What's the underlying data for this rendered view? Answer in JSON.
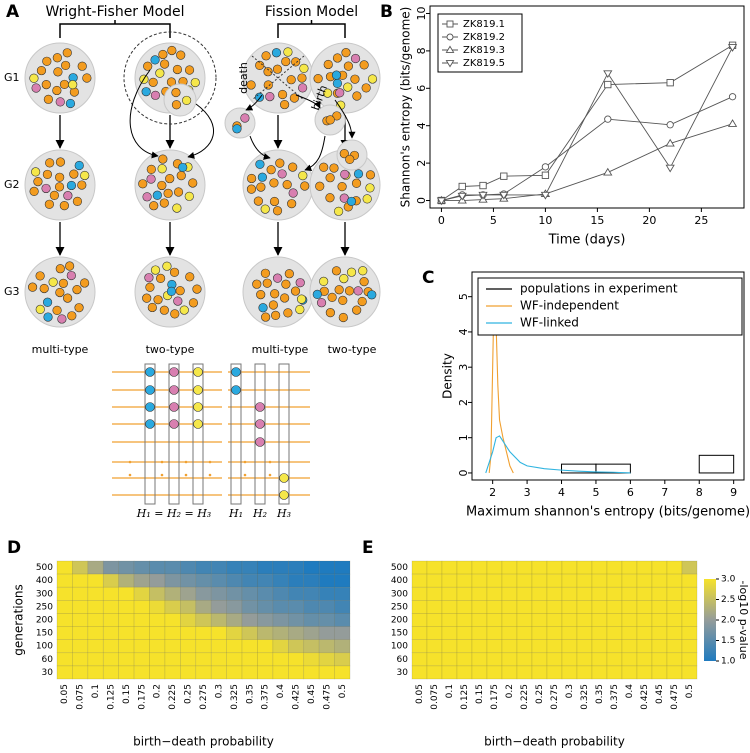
{
  "diagram": {
    "label": "A",
    "models": [
      {
        "title": "Wright-Fisher Model"
      },
      {
        "title": "Fission Model"
      }
    ],
    "generations": [
      "G1",
      "G2",
      "G3"
    ],
    "population_types": [
      "multi-type",
      "two-type",
      "multi-type",
      "two-type"
    ],
    "events": [
      "death",
      "birth"
    ],
    "haplotype_labels": [
      "H₁ = H₂ = H₃",
      "H₁",
      "H₂",
      "H₃"
    ]
  },
  "chart_data": [
    {
      "type": "line",
      "label": "B",
      "ylabel": "Shannon's entropy (bits/genome)",
      "xlabel": "Time (days)",
      "x": [
        0,
        2,
        4,
        6,
        10,
        16,
        22,
        28
      ],
      "series": [
        {
          "name": "ZK819.1",
          "marker": "square",
          "color": "#555555",
          "values": [
            0,
            0.75,
            0.8,
            1.3,
            1.35,
            6.2,
            6.3,
            8.3
          ]
        },
        {
          "name": "ZK819.2",
          "marker": "circle",
          "color": "#555555",
          "values": [
            0,
            0.3,
            0.3,
            0.35,
            1.8,
            4.35,
            4.05,
            5.55
          ]
        },
        {
          "name": "ZK819.3",
          "marker": "triangle-up",
          "color": "#555555",
          "values": [
            0,
            0,
            0.05,
            0.1,
            0.35,
            1.5,
            3.05,
            4.1
          ]
        },
        {
          "name": "ZK819.5",
          "marker": "triangle-down",
          "color": "#555555",
          "values": [
            0,
            0.25,
            0.3,
            0.3,
            0.3,
            6.8,
            1.75,
            8.2
          ]
        }
      ],
      "xlim": [
        -1.1,
        29.1
      ],
      "xticks": [
        0,
        5,
        10,
        15,
        20,
        25
      ],
      "ylim": [
        -0.4,
        10.4
      ],
      "yticks": [
        0,
        2,
        4,
        6,
        8,
        10
      ],
      "legend": "top-left"
    },
    {
      "type": "line",
      "label": "C",
      "ylabel": "Density",
      "xlabel": "Maximum shannon's entropy (bits/genome)",
      "series": [
        {
          "name": "populations in experiment",
          "type": "histogram",
          "color": "#000000",
          "bins": [
            4,
            5,
            6,
            8,
            9
          ],
          "values": [
            0.25,
            0.25,
            0,
            0.5
          ]
        },
        {
          "name": "WF-independent",
          "color": "#f0a030",
          "x": [
            1.9,
            1.95,
            2.0,
            2.05,
            2.1,
            2.15,
            2.2,
            2.3,
            2.4,
            2.5,
            2.6
          ],
          "values": [
            0,
            0.5,
            3,
            5.5,
            4.2,
            2.5,
            1.5,
            1.0,
            0.6,
            0.2,
            0
          ]
        },
        {
          "name": "WF-linked",
          "color": "#30b4e0",
          "x": [
            1.8,
            1.9,
            2.0,
            2.1,
            2.2,
            2.3,
            2.5,
            2.8,
            3.0,
            3.5,
            4.0,
            4.5,
            5,
            5.5,
            6
          ],
          "values": [
            0,
            0.3,
            0.6,
            1.0,
            1.05,
            0.9,
            0.6,
            0.3,
            0.2,
            0.12,
            0.08,
            0.05,
            0.03,
            0.02,
            0
          ]
        }
      ],
      "xlim": [
        1.4,
        9.3
      ],
      "xticks": [
        2,
        3,
        4,
        5,
        6,
        7,
        8,
        9
      ],
      "ylim": [
        -0.2,
        5.7
      ],
      "yticks": [
        0,
        1,
        2,
        3,
        4,
        5
      ],
      "legend": "top-right"
    },
    {
      "type": "heatmap",
      "label": "D",
      "ylabel": "generations",
      "xlabel": "birth−death probability",
      "x": [
        0.05,
        0.075,
        0.1,
        0.125,
        0.15,
        0.175,
        0.2,
        0.225,
        0.25,
        0.275,
        0.3,
        0.325,
        0.35,
        0.375,
        0.4,
        0.425,
        0.45,
        0.475,
        0.5
      ],
      "y": [
        500,
        400,
        300,
        250,
        200,
        150,
        100,
        60,
        30
      ],
      "zlim": [
        1,
        3
      ],
      "colorscale": [
        "#1f7bbf",
        "#949c9a",
        "#f6e22b"
      ],
      "values": [
        [
          3,
          2.6,
          2.2,
          1.8,
          1.7,
          1.6,
          1.5,
          1.5,
          1.4,
          1.3,
          1.3,
          1.2,
          1.2,
          1.1,
          1.1,
          1.1,
          1.0,
          1.0,
          1.0
        ],
        [
          3,
          3,
          3,
          2.7,
          2.3,
          2.1,
          2.0,
          1.8,
          1.7,
          1.6,
          1.5,
          1.4,
          1.3,
          1.3,
          1.2,
          1.1,
          1.1,
          1.0,
          1.0
        ],
        [
          3,
          3,
          3,
          3,
          3,
          2.8,
          2.5,
          2.3,
          2.1,
          1.9,
          1.8,
          1.7,
          1.6,
          1.5,
          1.4,
          1.3,
          1.3,
          1.2,
          1.2
        ],
        [
          3,
          3,
          3,
          3,
          3,
          3,
          2.9,
          2.7,
          2.5,
          2.2,
          2.0,
          1.9,
          1.7,
          1.6,
          1.5,
          1.5,
          1.4,
          1.4,
          1.3
        ],
        [
          3,
          3,
          3,
          3,
          3,
          3,
          3,
          3,
          2.8,
          2.6,
          2.4,
          2.2,
          2.0,
          1.9,
          1.8,
          1.7,
          1.6,
          1.6,
          1.5
        ],
        [
          3,
          3,
          3,
          3,
          3,
          3,
          3,
          3,
          3,
          3,
          3,
          2.8,
          2.6,
          2.4,
          2.3,
          2.2,
          2.1,
          2.0,
          2.0
        ],
        [
          3,
          3,
          3,
          3,
          3,
          3,
          3,
          3,
          3,
          3,
          3,
          3,
          3,
          3,
          2.8,
          2.6,
          2.5,
          2.4,
          2.3
        ],
        [
          3,
          3,
          3,
          3,
          3,
          3,
          3,
          3,
          3,
          3,
          3,
          3,
          3,
          3,
          3,
          3,
          2.9,
          2.8,
          2.7
        ],
        [
          3,
          3,
          3,
          3,
          3,
          3,
          3,
          3,
          3,
          3,
          3,
          3,
          3,
          3,
          3,
          3,
          3,
          3,
          3
        ]
      ]
    },
    {
      "type": "heatmap",
      "label": "E",
      "xlabel": "birth−death probability",
      "zlabel": "-log10 p-value",
      "x": [
        0.05,
        0.075,
        0.1,
        0.125,
        0.15,
        0.175,
        0.2,
        0.225,
        0.25,
        0.275,
        0.3,
        0.325,
        0.35,
        0.375,
        0.4,
        0.425,
        0.45,
        0.475,
        0.5
      ],
      "y": [
        500,
        400,
        300,
        250,
        200,
        150,
        100,
        60,
        30
      ],
      "zlim": [
        1,
        3
      ],
      "colorscale": [
        "#1f7bbf",
        "#949c9a",
        "#f6e22b"
      ],
      "zticks": [
        {
          "value": 1,
          "label": "1.0"
        },
        {
          "value": 1.5,
          "label": "1.5"
        },
        {
          "value": 2,
          "label": "2.0"
        },
        {
          "value": 2.5,
          "label": "2.5"
        },
        {
          "value": 3,
          "label": "3.0"
        }
      ],
      "values": [
        [
          3,
          3,
          3,
          3,
          3,
          3,
          3,
          3,
          3,
          3,
          3,
          3,
          3,
          3,
          3,
          3,
          3,
          3,
          2.6
        ],
        [
          3,
          3,
          3,
          3,
          3,
          3,
          3,
          3,
          3,
          3,
          3,
          3,
          3,
          3,
          3,
          3,
          3,
          3,
          3
        ],
        [
          3,
          3,
          3,
          3,
          3,
          3,
          3,
          3,
          3,
          3,
          3,
          3,
          3,
          3,
          3,
          3,
          3,
          3,
          3
        ],
        [
          3,
          3,
          3,
          3,
          3,
          3,
          3,
          3,
          3,
          3,
          3,
          3,
          3,
          3,
          3,
          3,
          3,
          3,
          3
        ],
        [
          3,
          3,
          3,
          3,
          3,
          3,
          3,
          3,
          3,
          3,
          3,
          3,
          3,
          3,
          3,
          3,
          3,
          3,
          3
        ],
        [
          3,
          3,
          3,
          3,
          3,
          3,
          3,
          3,
          3,
          3,
          3,
          3,
          3,
          3,
          3,
          3,
          3,
          3,
          3
        ],
        [
          3,
          3,
          3,
          3,
          3,
          3,
          3,
          3,
          3,
          3,
          3,
          3,
          3,
          3,
          3,
          3,
          3,
          3,
          3
        ],
        [
          3,
          3,
          3,
          3,
          3,
          3,
          3,
          3,
          3,
          3,
          3,
          3,
          3,
          3,
          3,
          3,
          3,
          3,
          3
        ],
        [
          3,
          3,
          3,
          3,
          3,
          3,
          3,
          3,
          3,
          3,
          3,
          3,
          3,
          3,
          3,
          3,
          3,
          3,
          3
        ]
      ]
    }
  ]
}
